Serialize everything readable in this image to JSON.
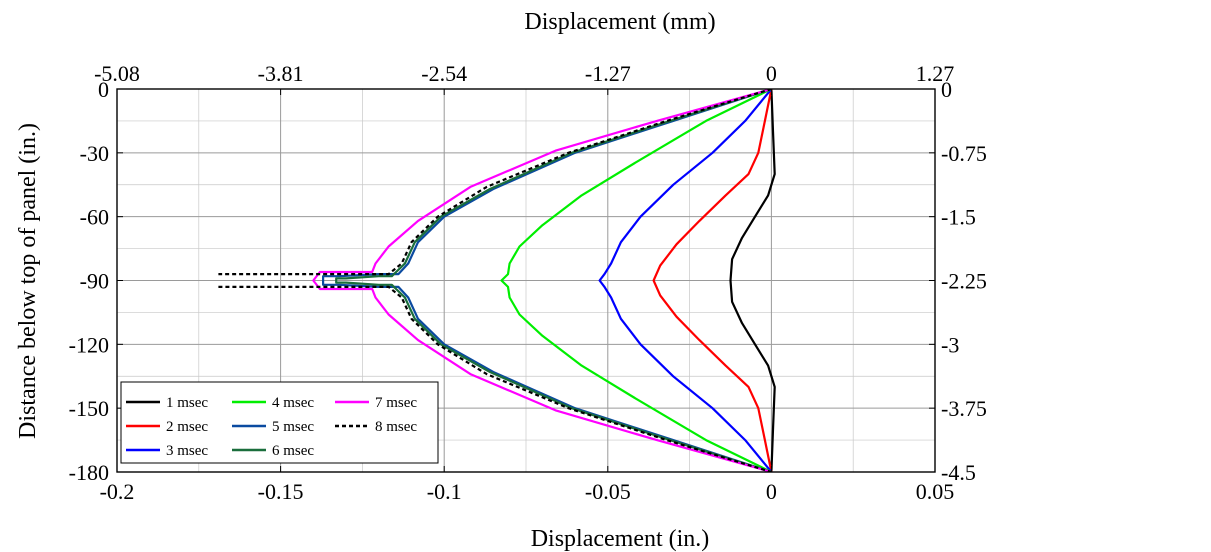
{
  "chart_data": {
    "type": "line",
    "xlabel": "Displacement (in.)",
    "ylabel": "Distance below top of panel (in.)",
    "x2label": "Displacement (mm)",
    "xlim": [
      -0.2,
      0.05
    ],
    "ylim": [
      -180,
      0
    ],
    "grid": true,
    "legend_position": "bottom-left",
    "x_ticks": [
      -0.2,
      -0.15,
      -0.1,
      -0.05,
      0,
      0.05
    ],
    "x_tick_labels": [
      "-0.2",
      "-0.15",
      "-0.1",
      "-0.05",
      "0",
      "0.05"
    ],
    "y_ticks": [
      0,
      -30,
      -60,
      -90,
      -120,
      -150,
      -180
    ],
    "y_tick_labels": [
      "0",
      "-30",
      "-60",
      "-90",
      "-120",
      "-150",
      "-180"
    ],
    "x2_ticks_in": [
      -0.2,
      -0.15,
      -0.1,
      -0.05,
      0,
      0.05
    ],
    "x2_tick_labels": [
      "-5.08",
      "-3.81",
      "-2.54",
      "-1.27",
      "0",
      "1.27"
    ],
    "y2_ticks_in": [
      0,
      -30,
      -60,
      -90,
      -120,
      -150,
      -180
    ],
    "y2_tick_labels": [
      "0",
      "-0.75",
      "-1.5",
      "-2.25",
      "-3",
      "-3.75",
      "-4.5"
    ],
    "series": [
      {
        "name": "1 msec",
        "color": "#000000",
        "dash": false,
        "points": [
          [
            0,
            0
          ],
          [
            0.0005,
            -20
          ],
          [
            0.001,
            -40
          ],
          [
            -0.001,
            -50
          ],
          [
            -0.005,
            -60
          ],
          [
            -0.009,
            -70
          ],
          [
            -0.012,
            -80
          ],
          [
            -0.0125,
            -90
          ],
          [
            -0.012,
            -100
          ],
          [
            -0.009,
            -110
          ],
          [
            -0.005,
            -120
          ],
          [
            -0.001,
            -130
          ],
          [
            0.001,
            -140
          ],
          [
            0.0005,
            -160
          ],
          [
            0,
            -180
          ]
        ]
      },
      {
        "name": "2 msec",
        "color": "#ff0000",
        "dash": false,
        "points": [
          [
            0,
            0
          ],
          [
            -0.002,
            -15
          ],
          [
            -0.004,
            -30
          ],
          [
            -0.007,
            -40
          ],
          [
            -0.014,
            -50
          ],
          [
            -0.022,
            -62
          ],
          [
            -0.029,
            -73
          ],
          [
            -0.034,
            -83
          ],
          [
            -0.036,
            -90
          ],
          [
            -0.034,
            -97
          ],
          [
            -0.029,
            -107
          ],
          [
            -0.022,
            -118
          ],
          [
            -0.014,
            -130
          ],
          [
            -0.007,
            -140
          ],
          [
            -0.004,
            -150
          ],
          [
            -0.002,
            -165
          ],
          [
            0,
            -180
          ]
        ]
      },
      {
        "name": "3 msec",
        "color": "#0000ff",
        "dash": false,
        "points": [
          [
            0,
            0
          ],
          [
            -0.008,
            -15
          ],
          [
            -0.018,
            -30
          ],
          [
            -0.03,
            -45
          ],
          [
            -0.04,
            -60
          ],
          [
            -0.046,
            -72
          ],
          [
            -0.049,
            -82
          ],
          [
            -0.051,
            -87
          ],
          [
            -0.0525,
            -90
          ],
          [
            -0.051,
            -93
          ],
          [
            -0.049,
            -98
          ],
          [
            -0.046,
            -108
          ],
          [
            -0.04,
            -120
          ],
          [
            -0.03,
            -135
          ],
          [
            -0.018,
            -150
          ],
          [
            -0.008,
            -165
          ],
          [
            0,
            -180
          ]
        ]
      },
      {
        "name": "4 msec",
        "color": "#00ee00",
        "dash": false,
        "points": [
          [
            0,
            0
          ],
          [
            -0.02,
            -15
          ],
          [
            -0.042,
            -35
          ],
          [
            -0.058,
            -50
          ],
          [
            -0.07,
            -64
          ],
          [
            -0.077,
            -74
          ],
          [
            -0.08,
            -82
          ],
          [
            -0.0805,
            -87
          ],
          [
            -0.0825,
            -90
          ],
          [
            -0.0805,
            -93
          ],
          [
            -0.08,
            -98
          ],
          [
            -0.077,
            -106
          ],
          [
            -0.07,
            -116
          ],
          [
            -0.058,
            -130
          ],
          [
            -0.042,
            -145
          ],
          [
            -0.02,
            -165
          ],
          [
            0,
            -180
          ]
        ]
      },
      {
        "name": "5 msec",
        "color": "#0a4aa0",
        "dash": false,
        "points": [
          [
            0,
            0
          ],
          [
            -0.03,
            -15
          ],
          [
            -0.06,
            -30
          ],
          [
            -0.085,
            -47
          ],
          [
            -0.1,
            -60
          ],
          [
            -0.108,
            -72
          ],
          [
            -0.111,
            -82
          ],
          [
            -0.114,
            -87
          ],
          [
            -0.12,
            -87
          ],
          [
            -0.132,
            -88
          ],
          [
            -0.137,
            -88
          ],
          [
            -0.137,
            -92
          ],
          [
            -0.132,
            -92
          ],
          [
            -0.12,
            -93
          ],
          [
            -0.114,
            -93
          ],
          [
            -0.111,
            -98
          ],
          [
            -0.108,
            -108
          ],
          [
            -0.1,
            -120
          ],
          [
            -0.085,
            -133
          ],
          [
            -0.06,
            -150
          ],
          [
            -0.03,
            -165
          ],
          [
            0,
            -180
          ]
        ]
      },
      {
        "name": "6 msec",
        "color": "#1a6e3c",
        "dash": false,
        "points": [
          [
            0,
            0
          ],
          [
            -0.031,
            -15
          ],
          [
            -0.061,
            -30
          ],
          [
            -0.086,
            -47
          ],
          [
            -0.101,
            -60
          ],
          [
            -0.109,
            -72
          ],
          [
            -0.112,
            -82
          ],
          [
            -0.116,
            -88
          ],
          [
            -0.12,
            -88
          ],
          [
            -0.13,
            -89
          ],
          [
            -0.133,
            -89
          ],
          [
            -0.133,
            -91
          ],
          [
            -0.13,
            -91
          ],
          [
            -0.12,
            -92
          ],
          [
            -0.116,
            -92
          ],
          [
            -0.112,
            -98
          ],
          [
            -0.109,
            -108
          ],
          [
            -0.101,
            -120
          ],
          [
            -0.086,
            -133
          ],
          [
            -0.061,
            -150
          ],
          [
            -0.031,
            -165
          ],
          [
            0,
            -180
          ]
        ]
      },
      {
        "name": "7 msec",
        "color": "#ff00ff",
        "dash": false,
        "points": [
          [
            0,
            0
          ],
          [
            -0.035,
            -15
          ],
          [
            -0.066,
            -29
          ],
          [
            -0.092,
            -46
          ],
          [
            -0.108,
            -62
          ],
          [
            -0.117,
            -74
          ],
          [
            -0.121,
            -82
          ],
          [
            -0.122,
            -86
          ],
          [
            -0.13,
            -86
          ],
          [
            -0.138,
            -86
          ],
          [
            -0.14,
            -90
          ],
          [
            -0.138,
            -94
          ],
          [
            -0.13,
            -94
          ],
          [
            -0.122,
            -94
          ],
          [
            -0.121,
            -98
          ],
          [
            -0.117,
            -106
          ],
          [
            -0.108,
            -118
          ],
          [
            -0.092,
            -134
          ],
          [
            -0.066,
            -151
          ],
          [
            -0.035,
            -165
          ],
          [
            0,
            -180
          ]
        ]
      },
      {
        "name": "8 msec",
        "color": "#000000",
        "dash": true,
        "points": [
          [
            0,
            0
          ],
          [
            -0.032,
            -15
          ],
          [
            -0.062,
            -30
          ],
          [
            -0.087,
            -46
          ],
          [
            -0.102,
            -60
          ],
          [
            -0.11,
            -72
          ],
          [
            -0.113,
            -82
          ],
          [
            -0.117,
            -87
          ],
          [
            -0.13,
            -87
          ],
          [
            -0.15,
            -87
          ],
          [
            -0.169,
            -87
          ],
          [
            null,
            null
          ],
          [
            -0.169,
            -93
          ],
          [
            -0.15,
            -93
          ],
          [
            -0.13,
            -93
          ],
          [
            -0.117,
            -93
          ],
          [
            -0.113,
            -98
          ],
          [
            -0.11,
            -108
          ],
          [
            -0.102,
            -120
          ],
          [
            -0.087,
            -134
          ],
          [
            -0.062,
            -150
          ],
          [
            -0.032,
            -165
          ],
          [
            0,
            -180
          ]
        ]
      }
    ]
  }
}
